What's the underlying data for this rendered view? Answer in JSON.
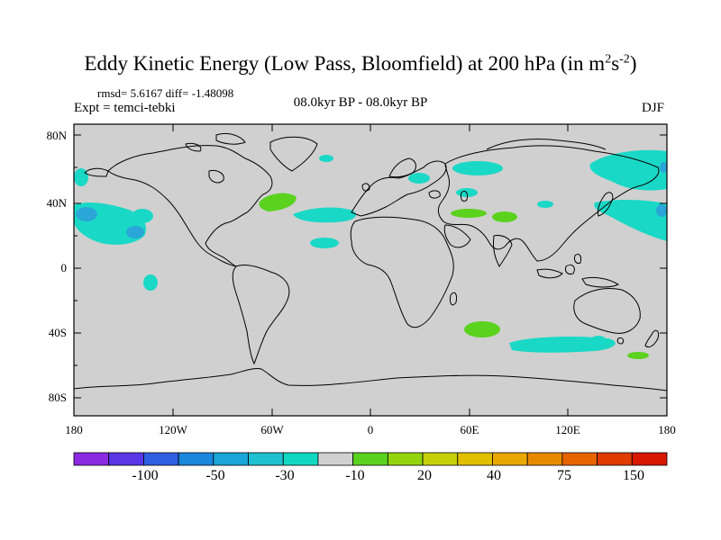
{
  "title": {
    "main": "Eddy Kinetic Energy (Low Pass, Bloomfield) at 200 hPa (in m",
    "sup1": "2",
    "mid": "s",
    "sup2": "-2",
    "end": ")"
  },
  "stats": "rmsd= 5.6167  diff= -1.48098",
  "experiment": "Expt = temci-tebki",
  "period": "08.0kyr BP - 08.0kyr BP",
  "season": "DJF",
  "map": {
    "background": "#d0d0d0",
    "y_axis_labels": [
      "80N",
      "40N",
      "0",
      "40S",
      "80S"
    ],
    "x_axis_labels": [
      "180",
      "120W",
      "60W",
      "0",
      "60E",
      "120E",
      "180"
    ]
  },
  "colorbar": {
    "colors": [
      "#8a2be2",
      "#5a37e6",
      "#2e5fe2",
      "#1a86dc",
      "#1aa6d8",
      "#20c0d0",
      "#10d8c0",
      "#d0d0d0",
      "#5ad21e",
      "#94d40e",
      "#c6d00a",
      "#e0c000",
      "#e8a800",
      "#e88a00",
      "#e86400",
      "#e03c00",
      "#d81800"
    ],
    "labels": [
      "-100",
      "-50",
      "-30",
      "-10",
      "20",
      "40",
      "75",
      "150"
    ]
  }
}
